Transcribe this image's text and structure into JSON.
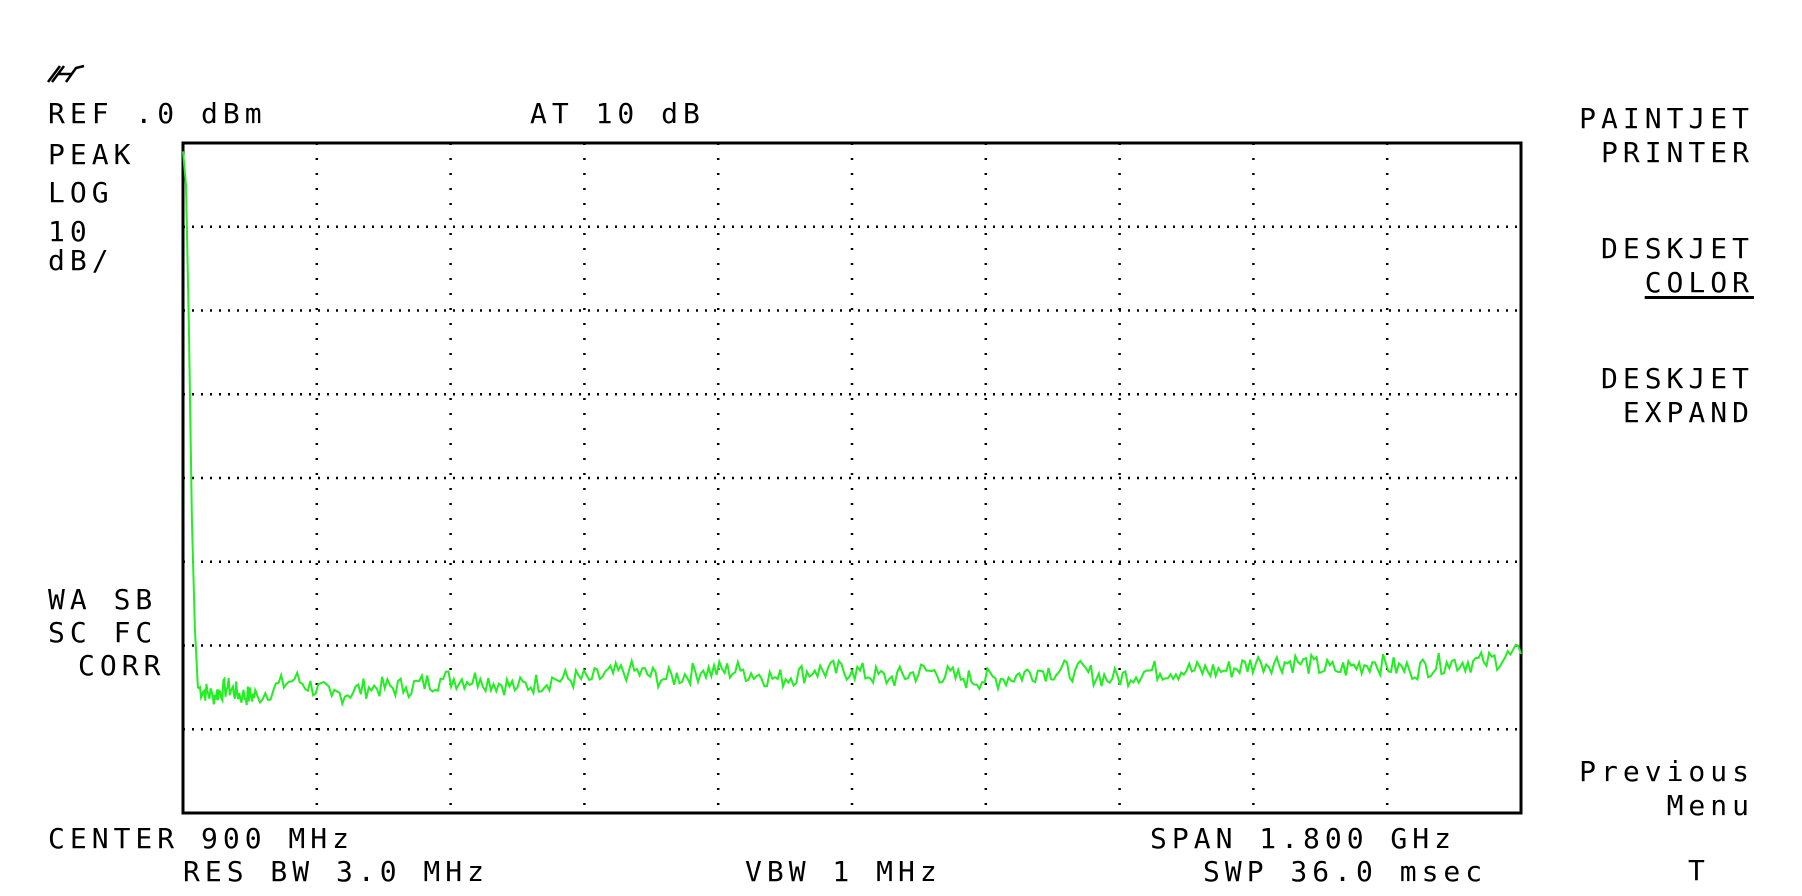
{
  "header": {
    "ref": "REF .0 dBm",
    "atten": "AT 10 dB"
  },
  "left_labels": {
    "detector": "PEAK",
    "scale_mode": "LOG",
    "scale_value": "10",
    "scale_unit": "dB/",
    "ann_1": "WA SB",
    "ann_2": "SC FC",
    "ann_3": "CORR"
  },
  "footer": {
    "center": "CENTER 900 MHz",
    "span": "SPAN 1.800 GHz",
    "res_bw": "RES BW 3.0 MHz",
    "vbw": "VBW 1 MHz",
    "sweep": "SWP 36.0 msec"
  },
  "softkeys": [
    {
      "line1": "PAINTJET",
      "line2": "PRINTER"
    },
    {
      "line1": "DESKJET",
      "line2": "COLOR"
    },
    {
      "line1": "DESKJET",
      "line2": "EXPAND"
    },
    {
      "line1": "Previous",
      "line2": "Menu"
    }
  ],
  "status_char": "T",
  "colors": {
    "trace": "#22ee22",
    "graticule": "#000000",
    "background": "#ffffff"
  },
  "chart_data": {
    "type": "line",
    "title": "",
    "xlabel": "",
    "ylabel": "",
    "x_unit": "MHz",
    "y_unit": "dBm",
    "xlim": [
      0,
      1800
    ],
    "ylim": [
      -80,
      0
    ],
    "grid": true,
    "divisions": {
      "x": 10,
      "y": 8
    },
    "series": [
      {
        "x": [
          0,
          4,
          8,
          12,
          16,
          20,
          40,
          60,
          80,
          100,
          150,
          200,
          250,
          300,
          350,
          400,
          450,
          500,
          550,
          600,
          650,
          700,
          750,
          800,
          850,
          900,
          950,
          1000,
          1050,
          1100,
          1150,
          1200,
          1250,
          1300,
          1350,
          1400,
          1450,
          1500,
          1550,
          1600,
          1650,
          1700,
          1750,
          1800
        ],
        "y": [
          -1,
          -5,
          -22,
          -45,
          -58,
          -65,
          -66,
          -65,
          -66,
          -66,
          -64,
          -66,
          -65,
          -65,
          -64,
          -64,
          -65,
          -64,
          -64,
          -63,
          -64,
          -63,
          -63,
          -64,
          -63,
          -63,
          -64,
          -63,
          -64,
          -64,
          -63,
          -63,
          -64,
          -63,
          -63,
          -63,
          -62,
          -62,
          -63,
          -62,
          -63,
          -62,
          -62,
          -61
        ]
      }
    ]
  }
}
